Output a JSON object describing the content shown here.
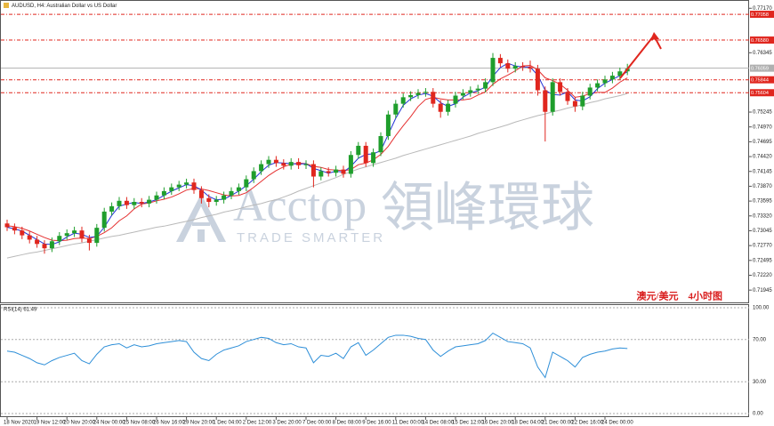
{
  "chart_data": [
    {
      "type": "candlestick",
      "title": "AUDUSD, H4: Australian Dollar vs US Dollar",
      "annotation": "澳元/美元　4小时图",
      "watermark": [
        "Acctop",
        "領峰環球",
        "TRADE SMARTER"
      ],
      "categories": [
        "18 Nov 2020",
        null,
        null,
        null,
        "19 Nov 12:00",
        null,
        null,
        null,
        "20 Nov 20:00",
        null,
        null,
        null,
        "24 Nov 00:00",
        null,
        null,
        null,
        "25 Nov 08:00",
        null,
        null,
        null,
        "26 Nov 16:00",
        null,
        null,
        null,
        "29 Nov 20:00",
        null,
        null,
        null,
        "1 Dec 04:00",
        null,
        null,
        null,
        "2 Dec 12:00",
        null,
        null,
        null,
        "3 Dec 20:00",
        null,
        null,
        null,
        "7 Dec 00:00",
        null,
        null,
        null,
        "8 Dec 08:00",
        null,
        null,
        null,
        "9 Dec 16:00",
        null,
        null,
        null,
        "11 Dec 00:00",
        null,
        null,
        null,
        "14 Dec 08:00",
        null,
        null,
        null,
        "15 Dec 12:00",
        null,
        null,
        null,
        "16 Dec 20:00",
        null,
        null,
        null,
        "18 Dec 04:00",
        null,
        null,
        null,
        "21 Dec 00:00",
        null,
        null,
        null,
        "22 Dec 16:00",
        null,
        null,
        null,
        "24 Dec 00:00",
        null,
        null,
        null
      ],
      "open": [
        0.7318,
        0.7311,
        0.7305,
        0.7296,
        0.7288,
        0.728,
        0.7272,
        0.7285,
        0.7295,
        0.73,
        0.7305,
        0.729,
        0.7282,
        0.731,
        0.734,
        0.735,
        0.736,
        0.7352,
        0.7358,
        0.7355,
        0.7362,
        0.737,
        0.7378,
        0.7385,
        0.739,
        0.7394,
        0.738,
        0.7365,
        0.7358,
        0.7362,
        0.737,
        0.7378,
        0.7385,
        0.74,
        0.7415,
        0.7428,
        0.7436,
        0.743,
        0.7425,
        0.7432,
        0.7426,
        0.7428,
        0.7405,
        0.7415,
        0.7412,
        0.7418,
        0.741,
        0.7445,
        0.7462,
        0.743,
        0.745,
        0.748,
        0.752,
        0.754,
        0.7552,
        0.7556,
        0.756,
        0.7562,
        0.754,
        0.7525,
        0.754,
        0.7555,
        0.756,
        0.7565,
        0.7568,
        0.758,
        0.7625,
        0.7615,
        0.7605,
        0.761,
        0.7608,
        0.7605,
        0.7565,
        0.7525,
        0.758,
        0.7562,
        0.7545,
        0.7535,
        0.7555,
        0.757,
        0.7578,
        0.7585,
        0.7592,
        0.76
      ],
      "high": [
        0.7325,
        0.7318,
        0.7312,
        0.7303,
        0.7295,
        0.7287,
        0.7292,
        0.7302,
        0.7307,
        0.7312,
        0.7312,
        0.7297,
        0.7317,
        0.7347,
        0.7357,
        0.7367,
        0.7367,
        0.7365,
        0.7365,
        0.7369,
        0.7377,
        0.7385,
        0.7392,
        0.7397,
        0.7401,
        0.7401,
        0.7387,
        0.7372,
        0.7369,
        0.7377,
        0.7385,
        0.7392,
        0.7407,
        0.7422,
        0.7435,
        0.7443,
        0.7443,
        0.7437,
        0.7439,
        0.7439,
        0.7435,
        0.7435,
        0.7422,
        0.7422,
        0.7425,
        0.7425,
        0.7452,
        0.7469,
        0.7469,
        0.7457,
        0.7487,
        0.7527,
        0.7547,
        0.7559,
        0.7563,
        0.7567,
        0.7569,
        0.7569,
        0.7547,
        0.7547,
        0.7562,
        0.7567,
        0.7572,
        0.7575,
        0.7587,
        0.7634,
        0.7632,
        0.7622,
        0.7617,
        0.7617,
        0.762,
        0.7612,
        0.7572,
        0.7587,
        0.7587,
        0.7569,
        0.7552,
        0.7562,
        0.7577,
        0.7585,
        0.7592,
        0.7599,
        0.7607,
        0.7614
      ],
      "low": [
        0.7304,
        0.7298,
        0.7289,
        0.7281,
        0.7273,
        0.7262,
        0.7265,
        0.7278,
        0.7288,
        0.7293,
        0.7283,
        0.7268,
        0.7275,
        0.7303,
        0.7333,
        0.7343,
        0.7345,
        0.7345,
        0.7348,
        0.7348,
        0.7355,
        0.7363,
        0.7371,
        0.7378,
        0.7383,
        0.7373,
        0.7355,
        0.7348,
        0.7351,
        0.7355,
        0.7363,
        0.7371,
        0.7378,
        0.7393,
        0.7408,
        0.7421,
        0.7423,
        0.7418,
        0.7418,
        0.7419,
        0.7419,
        0.7385,
        0.7398,
        0.7405,
        0.7405,
        0.7403,
        0.7403,
        0.7438,
        0.7423,
        0.7423,
        0.7443,
        0.7473,
        0.7513,
        0.7533,
        0.7545,
        0.7549,
        0.7553,
        0.7533,
        0.7514,
        0.7518,
        0.7533,
        0.7548,
        0.7553,
        0.7558,
        0.7561,
        0.7573,
        0.7608,
        0.7598,
        0.7598,
        0.7601,
        0.7598,
        0.7555,
        0.747,
        0.7518,
        0.7555,
        0.7538,
        0.7525,
        0.7528,
        0.7548,
        0.7563,
        0.7571,
        0.7578,
        0.7585,
        0.7593
      ],
      "close": [
        0.7311,
        0.7305,
        0.7296,
        0.7288,
        0.728,
        0.7272,
        0.7285,
        0.7295,
        0.73,
        0.7305,
        0.729,
        0.7282,
        0.731,
        0.734,
        0.735,
        0.736,
        0.7352,
        0.7358,
        0.7355,
        0.7362,
        0.737,
        0.7378,
        0.7385,
        0.739,
        0.7394,
        0.738,
        0.7365,
        0.7358,
        0.7362,
        0.737,
        0.7378,
        0.7385,
        0.74,
        0.7415,
        0.7428,
        0.7436,
        0.743,
        0.7425,
        0.7432,
        0.7426,
        0.7428,
        0.7405,
        0.7415,
        0.7412,
        0.7418,
        0.741,
        0.7445,
        0.7462,
        0.743,
        0.745,
        0.748,
        0.752,
        0.754,
        0.7552,
        0.7556,
        0.756,
        0.7562,
        0.754,
        0.7525,
        0.754,
        0.7555,
        0.756,
        0.7565,
        0.7568,
        0.758,
        0.7625,
        0.7615,
        0.7605,
        0.761,
        0.7608,
        0.7605,
        0.7565,
        0.7525,
        0.758,
        0.7562,
        0.7545,
        0.7535,
        0.7555,
        0.757,
        0.7578,
        0.7585,
        0.7592,
        0.76,
        0.7605
      ],
      "up_color": "#1f9e2c",
      "down_color": "#e0261e",
      "series": [
        {
          "color": "#b9b9b9",
          "values": [
            0.7254,
            0.7257,
            0.726,
            0.7263,
            0.7265,
            0.7268,
            0.7271,
            0.7274,
            0.7277,
            0.728,
            0.7282,
            0.7285,
            0.7288,
            0.7291,
            0.7294,
            0.7296,
            0.7299,
            0.7302,
            0.7305,
            0.7308,
            0.7311,
            0.7313,
            0.7316,
            0.7319,
            0.7322,
            0.7325,
            0.7329,
            0.7332,
            0.7335,
            0.7339,
            0.7342,
            0.7345,
            0.7349,
            0.7352,
            0.7355,
            0.7359,
            0.7362,
            0.7367,
            0.7372,
            0.7378,
            0.7383,
            0.7388,
            0.7393,
            0.7398,
            0.7403,
            0.7409,
            0.7414,
            0.7419,
            0.7423,
            0.7427,
            0.7431,
            0.7435,
            0.7439,
            0.7444,
            0.7448,
            0.7452,
            0.7456,
            0.746,
            0.7464,
            0.7468,
            0.7472,
            0.7476,
            0.748,
            0.7485,
            0.7489,
            0.7493,
            0.7497,
            0.7501,
            0.7506,
            0.751,
            0.7514,
            0.7518,
            0.7521,
            0.7525,
            0.7528,
            0.7532,
            0.7535,
            0.7538,
            0.7542,
            0.7545,
            0.7549,
            0.7552,
            0.7555,
            0.7559
          ]
        },
        {
          "color": "#e53030",
          "values": [
            0.7314,
            0.7312,
            0.7309,
            0.7304,
            0.7298,
            0.7292,
            0.7287,
            0.7286,
            0.7287,
            0.729,
            0.7291,
            0.729,
            0.7294,
            0.7301,
            0.731,
            0.7323,
            0.7332,
            0.7345,
            0.7354,
            0.7356,
            0.736,
            0.7363,
            0.7367,
            0.7373,
            0.738,
            0.7383,
            0.7382,
            0.7379,
            0.7375,
            0.7371,
            0.7369,
            0.737,
            0.7375,
            0.7385,
            0.7396,
            0.7407,
            0.7416,
            0.7423,
            0.7428,
            0.743,
            0.7429,
            0.7424,
            0.7422,
            0.7418,
            0.7417,
            0.7416,
            0.7418,
            0.7427,
            0.743,
            0.7436,
            0.7446,
            0.7461,
            0.7481,
            0.7499,
            0.7516,
            0.7535,
            0.7548,
            0.7552,
            0.7549,
            0.7547,
            0.7547,
            0.7547,
            0.7549,
            0.7556,
            0.7562,
            0.7576,
            0.7586,
            0.7593,
            0.7601,
            0.761,
            0.7611,
            0.7603,
            0.7588,
            0.7583,
            0.7576,
            0.7565,
            0.7552,
            0.7554,
            0.7559,
            0.7561,
            0.7561,
            0.7569,
            0.758,
            0.7588
          ]
        },
        {
          "color": "#2233d6",
          "values": [
            0.7311,
            0.7308,
            0.7304,
            0.7296,
            0.7288,
            0.728,
            0.7279,
            0.7284,
            0.7293,
            0.73,
            0.7298,
            0.7292,
            0.7294,
            0.7311,
            0.7333,
            0.735,
            0.7354,
            0.7357,
            0.7355,
            0.7358,
            0.7362,
            0.737,
            0.7378,
            0.7384,
            0.739,
            0.7388,
            0.738,
            0.7368,
            0.7362,
            0.7363,
            0.737,
            0.7378,
            0.7388,
            0.74,
            0.7414,
            0.7426,
            0.7431,
            0.743,
            0.7429,
            0.7428,
            0.7429,
            0.742,
            0.7416,
            0.7411,
            0.7415,
            0.7413,
            0.7424,
            0.7439,
            0.7446,
            0.7447,
            0.7453,
            0.7483,
            0.7513,
            0.7537,
            0.7549,
            0.7556,
            0.7559,
            0.7554,
            0.7542,
            0.7535,
            0.754,
            0.7552,
            0.756,
            0.7564,
            0.7571,
            0.7591,
            0.7607,
            0.7615,
            0.761,
            0.7608,
            0.7608,
            0.7593,
            0.7565,
            0.7557,
            0.7556,
            0.7562,
            0.7547,
            0.7545,
            0.7553,
            0.7568,
            0.7578,
            0.7585,
            0.7592,
            0.7599
          ]
        }
      ],
      "ylim": [
        0.7175,
        0.7729
      ],
      "yticks": [
        {
          "value": 0.7717,
          "label": "0.77170"
        },
        {
          "value": 0.76345,
          "label": "0.76345"
        },
        {
          "value": 0.75245,
          "label": "0.75245"
        },
        {
          "value": 0.7497,
          "label": "0.74970"
        },
        {
          "value": 0.74695,
          "label": "0.74695"
        },
        {
          "value": 0.7442,
          "label": "0.74420"
        },
        {
          "value": 0.74145,
          "label": "0.74145"
        },
        {
          "value": 0.7387,
          "label": "0.73870"
        },
        {
          "value": 0.73595,
          "label": "0.73595"
        },
        {
          "value": 0.7332,
          "label": "0.73320"
        },
        {
          "value": 0.73045,
          "label": "0.73045"
        },
        {
          "value": 0.7277,
          "label": "0.72770"
        },
        {
          "value": 0.72495,
          "label": "0.72495"
        },
        {
          "value": 0.7222,
          "label": "0.72220"
        },
        {
          "value": 0.71945,
          "label": "0.71945"
        }
      ],
      "levels": [
        {
          "value": 0.77058,
          "color": "#e0261e",
          "style": "dash"
        },
        {
          "value": 0.7658,
          "label": "0.76580",
          "color": "#e0261e",
          "style": "dash"
        },
        {
          "value": 0.76059,
          "color": "#b0b0b0",
          "style": "solid"
        },
        {
          "value": 0.75844,
          "color": "#e0261e",
          "style": "dash"
        },
        {
          "value": 0.75604,
          "color": "#e0261e",
          "style": "dash"
        }
      ]
    },
    {
      "type": "line",
      "title": "RSI(14) 61.49",
      "color": "#2e8fd8",
      "values": [
        59,
        58,
        55,
        52,
        48,
        46,
        50,
        53,
        55,
        57,
        50,
        47,
        56,
        63,
        65,
        66,
        62,
        65,
        63,
        64,
        66,
        67,
        68,
        69,
        68,
        58,
        52,
        50,
        56,
        60,
        62,
        64,
        68,
        70,
        72,
        71,
        67,
        65,
        66,
        63,
        62,
        48,
        55,
        54,
        57,
        52,
        63,
        67,
        55,
        60,
        66,
        72,
        74,
        74,
        73,
        71,
        70,
        60,
        54,
        59,
        63,
        64,
        65,
        66,
        69,
        76,
        72,
        68,
        67,
        66,
        62,
        44,
        34,
        58,
        54,
        50,
        44,
        53,
        56,
        58,
        59,
        61,
        62,
        61.49
      ],
      "ylim": [
        0,
        100
      ],
      "yticks": [
        {
          "value": 100,
          "label": "100.00"
        },
        {
          "value": 70,
          "label": "70.00"
        },
        {
          "value": 30,
          "label": "30.00"
        },
        {
          "value": 0,
          "label": "0.00"
        }
      ]
    }
  ]
}
